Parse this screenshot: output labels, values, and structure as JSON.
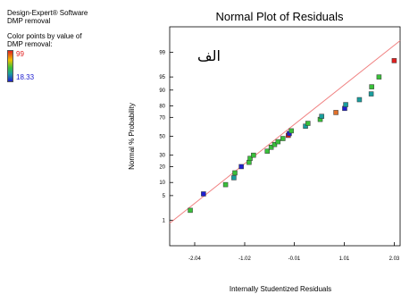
{
  "sidebar": {
    "software": "Design-Expert® Software",
    "response": "DMP removal",
    "color_note_1": "Color points by value of",
    "color_note_2": "DMP removal:",
    "legend_high": "99",
    "legend_low": "18.33",
    "colors": {
      "high": "#e02020",
      "low": "#2020d0"
    }
  },
  "annotation": "الف",
  "chart_data": {
    "type": "scatter",
    "title": "Normal Plot of Residuals",
    "xlabel": "Internally  Studentized Residuals",
    "ylabel": "Normal % Probability",
    "x_ticks": [
      "-2.04",
      "-1.02",
      "-0.01",
      "1.01",
      "2.03"
    ],
    "y_ticks": [
      "1",
      "5",
      "10",
      "20",
      "30",
      "50",
      "70",
      "80",
      "90",
      "95",
      "99"
    ],
    "xlim": [
      -2.55,
      2.15
    ],
    "y_scale": "normal-probability",
    "ylim_percent": [
      0.12,
      99.88
    ],
    "grid": false,
    "fit_line": {
      "x": [
        -2.55,
        2.15
      ],
      "y": [
        0.8,
        99.6
      ],
      "color": "#f08080"
    },
    "points": [
      {
        "x": -2.13,
        "y": 2.0,
        "c": "#3ac03a"
      },
      {
        "x": -1.86,
        "y": 5.5,
        "c": "#2020d0"
      },
      {
        "x": -1.41,
        "y": 9.0,
        "c": "#3ac03a"
      },
      {
        "x": -1.24,
        "y": 12.5,
        "c": "#1a9e9e"
      },
      {
        "x": -1.22,
        "y": 15.5,
        "c": "#3ac03a"
      },
      {
        "x": -1.09,
        "y": 20.0,
        "c": "#2020d0"
      },
      {
        "x": -0.93,
        "y": 23.5,
        "c": "#3ac03a"
      },
      {
        "x": -0.91,
        "y": 27.0,
        "c": "#3ac03a"
      },
      {
        "x": -0.84,
        "y": 30.0,
        "c": "#3ac03a"
      },
      {
        "x": -0.56,
        "y": 34.0,
        "c": "#3ac03a"
      },
      {
        "x": -0.48,
        "y": 38.0,
        "c": "#3ac03a"
      },
      {
        "x": -0.41,
        "y": 41.0,
        "c": "#3ac03a"
      },
      {
        "x": -0.34,
        "y": 44.0,
        "c": "#3ac03a"
      },
      {
        "x": -0.24,
        "y": 47.5,
        "c": "#3ac03a"
      },
      {
        "x": -0.13,
        "y": 51.0,
        "c": "#e02020"
      },
      {
        "x": -0.11,
        "y": 53.0,
        "c": "#2020d0"
      },
      {
        "x": -0.07,
        "y": 56.0,
        "c": "#3ac03a"
      },
      {
        "x": 0.22,
        "y": 61.0,
        "c": "#1a9e9e"
      },
      {
        "x": 0.27,
        "y": 64.0,
        "c": "#3ac03a"
      },
      {
        "x": 0.52,
        "y": 68.0,
        "c": "#3ac03a"
      },
      {
        "x": 0.55,
        "y": 71.0,
        "c": "#1a9e9e"
      },
      {
        "x": 0.84,
        "y": 74.5,
        "c": "#e0702a"
      },
      {
        "x": 1.02,
        "y": 78.0,
        "c": "#2020d0"
      },
      {
        "x": 1.04,
        "y": 81.0,
        "c": "#1a9e9e"
      },
      {
        "x": 1.32,
        "y": 84.5,
        "c": "#1a9e9e"
      },
      {
        "x": 1.56,
        "y": 88.0,
        "c": "#1a9e9e"
      },
      {
        "x": 1.57,
        "y": 91.5,
        "c": "#3ac03a"
      },
      {
        "x": 1.72,
        "y": 95.0,
        "c": "#3ac03a"
      },
      {
        "x": 2.03,
        "y": 98.2,
        "c": "#e02020"
      }
    ]
  }
}
